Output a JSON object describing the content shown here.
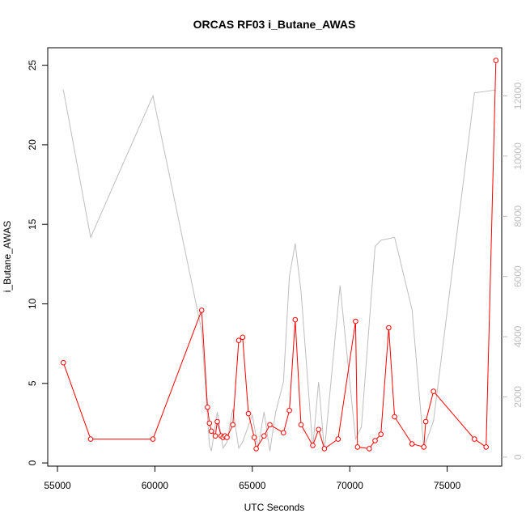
{
  "chart_data": {
    "type": "line",
    "title": "ORCAS RF03 i_Butane_AWAS",
    "xlabel": "UTC Seconds",
    "ylabel": "i_Butane_AWAS",
    "xlim": [
      54500,
      77800
    ],
    "ylim": [
      -0.2,
      26.1
    ],
    "y2lim": [
      -300,
      13600
    ],
    "x_ticks": [
      55000,
      60000,
      65000,
      70000,
      75000
    ],
    "y_ticks": [
      0,
      5,
      10,
      15,
      20,
      25
    ],
    "y2_ticks": [
      0,
      2000,
      4000,
      6000,
      8000,
      10000,
      12000
    ],
    "colors": {
      "primary": "#ff0000",
      "secondary": "#bebebe"
    },
    "series": [
      {
        "axis": "left",
        "markers": true,
        "x": [
          55300,
          56700,
          59900,
          62400,
          62700,
          62800,
          62900,
          63100,
          63200,
          63400,
          63500,
          63600,
          63700,
          64000,
          64300,
          64500,
          64800,
          65100,
          65200,
          65600,
          65900,
          66600,
          66900,
          67200,
          67500,
          68100,
          68400,
          68700,
          69400,
          70300,
          70400,
          71000,
          71300,
          71600,
          72000,
          72300,
          73200,
          73800,
          73900,
          74300,
          76400,
          77000,
          77500
        ],
        "values": [
          6.3,
          1.5,
          1.5,
          9.6,
          3.5,
          2.5,
          2.0,
          1.7,
          2.6,
          1.7,
          1.6,
          1.7,
          1.6,
          2.4,
          7.7,
          7.9,
          3.1,
          1.6,
          0.9,
          1.7,
          2.4,
          1.9,
          3.3,
          9.0,
          2.4,
          1.1,
          2.1,
          0.9,
          1.5,
          8.9,
          1.0,
          0.9,
          1.4,
          1.8,
          8.5,
          2.9,
          1.2,
          1.0,
          2.6,
          4.5,
          1.5,
          1.0,
          25.3
        ]
      },
      {
        "axis": "right",
        "markers": false,
        "x": [
          55300,
          56700,
          59900,
          62400,
          62800,
          62900,
          63200,
          63500,
          63700,
          64000,
          64300,
          64500,
          65000,
          65300,
          65600,
          65900,
          66200,
          66600,
          66900,
          67200,
          67500,
          68100,
          68400,
          68700,
          69500,
          70300,
          70600,
          71300,
          71600,
          72300,
          73200,
          73800,
          74300,
          76400,
          77500
        ],
        "values": [
          12200,
          7300,
          12000,
          4200,
          400,
          200,
          1500,
          300,
          500,
          1600,
          300,
          500,
          1400,
          300,
          1500,
          200,
          1500,
          2500,
          6000,
          7100,
          5500,
          300,
          2500,
          200,
          5700,
          600,
          1000,
          7000,
          7200,
          7300,
          4900,
          300,
          1200,
          12100,
          12200
        ]
      }
    ]
  }
}
